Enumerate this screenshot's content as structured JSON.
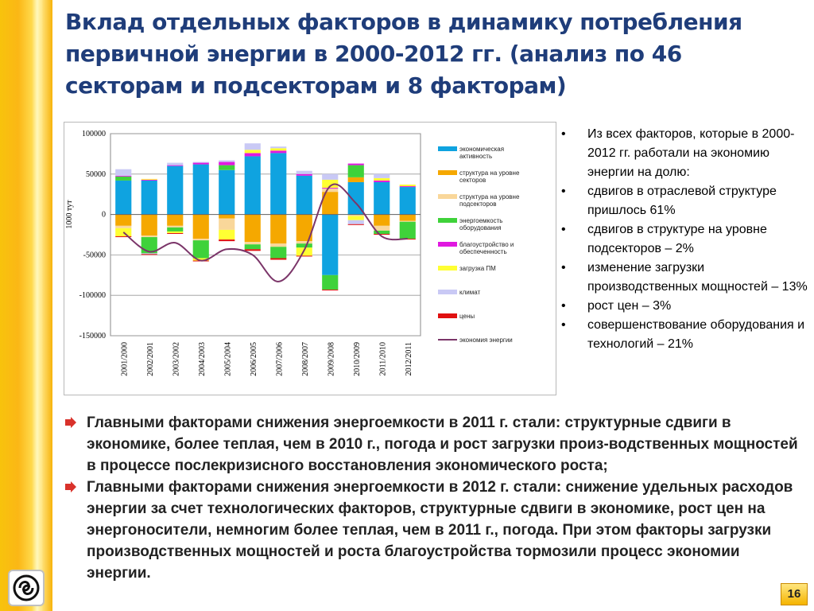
{
  "slide": {
    "title": "Вклад отдельных факторов в динамику потребления первичной энергии в 2000-2012 гг. (анализ по 46 секторам и подсекторам и 8 факторам)",
    "page_number": "16"
  },
  "bullets": [
    "Из всех факторов, которые в 2000-2012 гг. работали на экономию энергии на долю:",
    "сдвигов в отраслевой структуре пришлось 61%",
    "сдвигов в структуре на уровне подсекторов – 2%",
    "изменение загрузки производственных мощностей – 13%",
    "рост цен – 3%",
    "совершенствование оборудования и технологий – 21%"
  ],
  "findings": [
    "Главными факторами снижения энергоемкости в 2011 г. стали: структурные сдвиги в экономике, более теплая, чем в 2010 г., погода и рост загрузки произ-водственных мощностей в процессе послекризисного восстановления экономического роста;",
    "Главными факторами снижения энергоемкости в 2012 г. стали: снижение удельных расходов энергии за счет технологических факторов, структурные сдвиги в экономике, рост цен на энергоносители, немногим более теплая, чем в 2011 г., погода. При этом факторы загрузки производственных мощностей и роста благоустройства тормозили процесс экономии энергии."
  ],
  "colors": {
    "title": "#1f3d7a",
    "arrow": "#d9322b",
    "background_band": "#f8c30c"
  },
  "chart_data": {
    "type": "bar",
    "stacked": true,
    "ylabel": "1000 тут",
    "ylim": [
      -150000,
      100000
    ],
    "yticks": [
      100000,
      50000,
      0,
      -50000,
      -100000,
      -150000
    ],
    "ytick_labels": [
      "100000",
      "50000",
      "0",
      "-50000",
      "-100000",
      "-150000"
    ],
    "grid": true,
    "legend_position": "right",
    "categories": [
      "2001/2000",
      "2002/2001",
      "2003/2002",
      "2004/2003",
      "2005/2004",
      "2006/2005",
      "2007/2006",
      "2008/2007",
      "2009/2008",
      "2010/2009",
      "2011/2010",
      "2012/2011"
    ],
    "series": [
      {
        "name": "экономическая активность",
        "color": "#0fa3e0",
        "values": [
          42000,
          42000,
          60000,
          62000,
          55000,
          72000,
          76000,
          48000,
          -75000,
          40000,
          40000,
          34000
        ]
      },
      {
        "name": "структура на уровне секторов",
        "color": "#f5a800",
        "values": [
          -14000,
          -26000,
          -14000,
          -30000,
          -5000,
          -34000,
          -36000,
          -33000,
          28000,
          6000,
          -14000,
          -8000
        ]
      },
      {
        "name": "структура на уровне подсекторов",
        "color": "#f9d79a",
        "values": [
          -3000,
          -2000,
          -2000,
          -2000,
          -14000,
          -3000,
          -4000,
          -3000,
          4000,
          -2000,
          -6000,
          -1000
        ]
      },
      {
        "name": "энергоемкость оборудования",
        "color": "#3fd23a",
        "values": [
          5000,
          -20000,
          -5000,
          -22000,
          6000,
          -6000,
          -14000,
          -5000,
          -18000,
          15000,
          -4000,
          -21000
        ]
      },
      {
        "name": "благоустройство и обеспеченность",
        "color": "#e019e0",
        "values": [
          1000,
          1000,
          1000,
          2000,
          4000,
          4000,
          3000,
          2000,
          1000,
          2000,
          2000,
          1000
        ]
      },
      {
        "name": "загрузка ПМ",
        "color": "#ffff33",
        "values": [
          -10000,
          1000,
          -2000,
          -3000,
          -12000,
          4000,
          3000,
          -10000,
          10000,
          -5000,
          3000,
          2000
        ]
      },
      {
        "name": "климат",
        "color": "#c9c9f5",
        "values": [
          8000,
          -1000,
          3000,
          1000,
          2000,
          8000,
          2000,
          4000,
          7000,
          -5000,
          5000,
          0
        ]
      },
      {
        "name": "цены",
        "color": "#e01010",
        "values": [
          -1000,
          -1000,
          -1000,
          -1000,
          -2000,
          -2000,
          -2000,
          -1000,
          -1000,
          -1000,
          -1000,
          -1000
        ]
      },
      {
        "name": "экономия энергии",
        "type": "line",
        "color": "#7b3569",
        "values": [
          -22000,
          -46000,
          -35000,
          -57000,
          -43000,
          -50000,
          -83000,
          -44000,
          35000,
          14000,
          -27000,
          -30000
        ]
      }
    ]
  }
}
